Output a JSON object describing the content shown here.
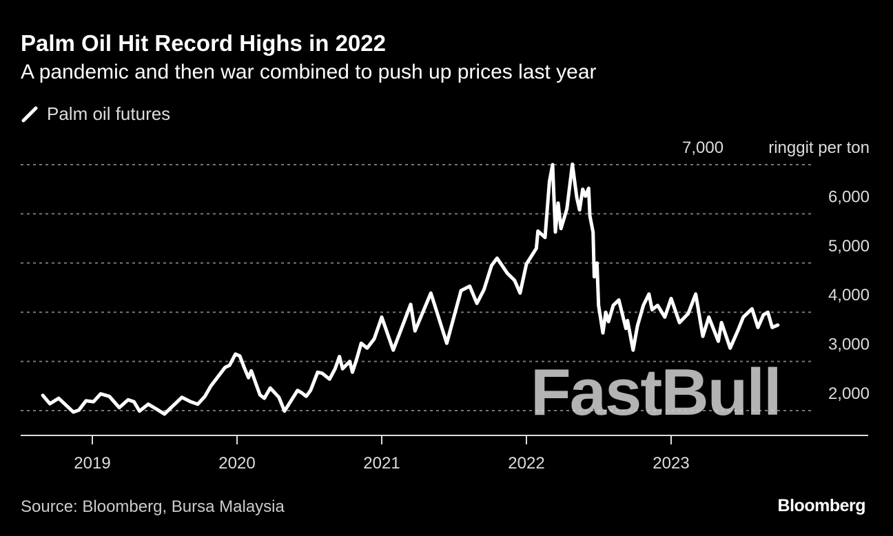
{
  "header": {
    "title": "Palm Oil Hit Record Highs in 2022",
    "subtitle": "A pandemic and then war combined to push up prices last year"
  },
  "footer": {
    "source": "Source: Bloomberg, Bursa Malaysia",
    "logo": "Bloomberg",
    "watermark": "FastBull"
  },
  "chart_data": {
    "type": "line",
    "title": "Palm Oil Hit Record Highs in 2022",
    "subtitle": "A pandemic and then war combined to push up prices last year",
    "ylabel": "ringgit per ton",
    "ylim": [
      2000,
      7000
    ],
    "yticks": [
      2000,
      3000,
      4000,
      5000,
      6000,
      7000
    ],
    "ytick_labels": [
      "2,000",
      "3,000",
      "4,000",
      "5,000",
      "6,000",
      "7,000"
    ],
    "xticks": [
      "2019",
      "2020",
      "2021",
      "2022",
      "2023"
    ],
    "grid": "horizontal dotted",
    "legend_position": "top-left",
    "line_color": "#ffffff",
    "gridline_color": "#777777",
    "series": [
      {
        "name": "Palm oil futures",
        "points": [
          [
            "2018-08-29",
            2310
          ],
          [
            "2018-09-16",
            2140
          ],
          [
            "2018-10-08",
            2250
          ],
          [
            "2018-11-14",
            1970
          ],
          [
            "2018-11-28",
            2010
          ],
          [
            "2018-12-16",
            2200
          ],
          [
            "2019-01-04",
            2180
          ],
          [
            "2019-01-22",
            2340
          ],
          [
            "2019-02-13",
            2290
          ],
          [
            "2019-03-10",
            2060
          ],
          [
            "2019-04-01",
            2220
          ],
          [
            "2019-04-16",
            2180
          ],
          [
            "2019-04-30",
            1990
          ],
          [
            "2019-05-22",
            2130
          ],
          [
            "2019-06-10",
            2040
          ],
          [
            "2019-07-02",
            1930
          ],
          [
            "2019-07-16",
            2040
          ],
          [
            "2019-08-15",
            2270
          ],
          [
            "2019-09-06",
            2180
          ],
          [
            "2019-09-24",
            2130
          ],
          [
            "2019-10-12",
            2290
          ],
          [
            "2019-10-27",
            2500
          ],
          [
            "2019-11-14",
            2690
          ],
          [
            "2019-12-02",
            2880
          ],
          [
            "2019-12-13",
            2920
          ],
          [
            "2019-12-28",
            3150
          ],
          [
            "2020-01-08",
            3110
          ],
          [
            "2020-01-19",
            2880
          ],
          [
            "2020-01-30",
            2670
          ],
          [
            "2020-02-06",
            2810
          ],
          [
            "2020-02-28",
            2320
          ],
          [
            "2020-03-10",
            2250
          ],
          [
            "2020-03-25",
            2460
          ],
          [
            "2020-04-16",
            2270
          ],
          [
            "2020-04-30",
            1990
          ],
          [
            "2020-05-15",
            2180
          ],
          [
            "2020-06-02",
            2410
          ],
          [
            "2020-06-13",
            2360
          ],
          [
            "2020-06-24",
            2290
          ],
          [
            "2020-07-05",
            2410
          ],
          [
            "2020-07-23",
            2780
          ],
          [
            "2020-08-03",
            2760
          ],
          [
            "2020-08-22",
            2640
          ],
          [
            "2020-09-05",
            2850
          ],
          [
            "2020-09-16",
            3100
          ],
          [
            "2020-09-24",
            2850
          ],
          [
            "2020-10-12",
            3000
          ],
          [
            "2020-10-19",
            2780
          ],
          [
            "2020-10-30",
            3060
          ],
          [
            "2020-11-10",
            3370
          ],
          [
            "2020-11-25",
            3270
          ],
          [
            "2020-12-13",
            3460
          ],
          [
            "2021-01-01",
            3900
          ],
          [
            "2021-01-30",
            3230
          ],
          [
            "2021-03-15",
            4160
          ],
          [
            "2021-03-26",
            3620
          ],
          [
            "2021-05-05",
            4390
          ],
          [
            "2021-06-14",
            3370
          ],
          [
            "2021-07-20",
            4440
          ],
          [
            "2021-08-11",
            4530
          ],
          [
            "2021-08-29",
            4180
          ],
          [
            "2021-09-16",
            4460
          ],
          [
            "2021-10-05",
            4950
          ],
          [
            "2021-10-19",
            5100
          ],
          [
            "2021-11-14",
            4790
          ],
          [
            "2021-12-02",
            4650
          ],
          [
            "2021-12-16",
            4390
          ],
          [
            "2022-01-01",
            4980
          ],
          [
            "2022-01-26",
            5300
          ],
          [
            "2022-01-30",
            5650
          ],
          [
            "2022-02-17",
            5520
          ],
          [
            "2022-02-28",
            6660
          ],
          [
            "2022-03-08",
            7000
          ],
          [
            "2022-03-15",
            5630
          ],
          [
            "2022-03-22",
            6220
          ],
          [
            "2022-03-29",
            5700
          ],
          [
            "2022-04-13",
            6100
          ],
          [
            "2022-04-27",
            7010
          ],
          [
            "2022-05-08",
            6330
          ],
          [
            "2022-05-15",
            6080
          ],
          [
            "2022-05-23",
            6500
          ],
          [
            "2022-05-30",
            6360
          ],
          [
            "2022-06-07",
            6520
          ],
          [
            "2022-06-10",
            5960
          ],
          [
            "2022-06-18",
            5630
          ],
          [
            "2022-06-21",
            4720
          ],
          [
            "2022-06-28",
            5000
          ],
          [
            "2022-07-02",
            4140
          ],
          [
            "2022-07-13",
            3580
          ],
          [
            "2022-07-20",
            4000
          ],
          [
            "2022-07-27",
            3810
          ],
          [
            "2022-08-08",
            4140
          ],
          [
            "2022-08-22",
            4250
          ],
          [
            "2022-09-09",
            3670
          ],
          [
            "2022-09-13",
            3830
          ],
          [
            "2022-09-27",
            3230
          ],
          [
            "2022-10-08",
            3720
          ],
          [
            "2022-10-23",
            4140
          ],
          [
            "2022-11-06",
            4370
          ],
          [
            "2022-11-14",
            4050
          ],
          [
            "2022-11-28",
            4140
          ],
          [
            "2022-12-16",
            3900
          ],
          [
            "2023-01-01",
            4280
          ],
          [
            "2023-01-22",
            3790
          ],
          [
            "2023-02-13",
            3970
          ],
          [
            "2023-03-04",
            4370
          ],
          [
            "2023-03-22",
            3510
          ],
          [
            "2023-04-06",
            3900
          ],
          [
            "2023-04-30",
            3410
          ],
          [
            "2023-05-08",
            3790
          ],
          [
            "2023-05-30",
            3270
          ],
          [
            "2023-06-18",
            3620
          ],
          [
            "2023-07-02",
            3900
          ],
          [
            "2023-07-24",
            4070
          ],
          [
            "2023-08-08",
            3690
          ],
          [
            "2023-08-22",
            3950
          ],
          [
            "2023-09-02",
            4000
          ],
          [
            "2023-09-13",
            3690
          ],
          [
            "2023-09-27",
            3740
          ]
        ]
      }
    ]
  }
}
